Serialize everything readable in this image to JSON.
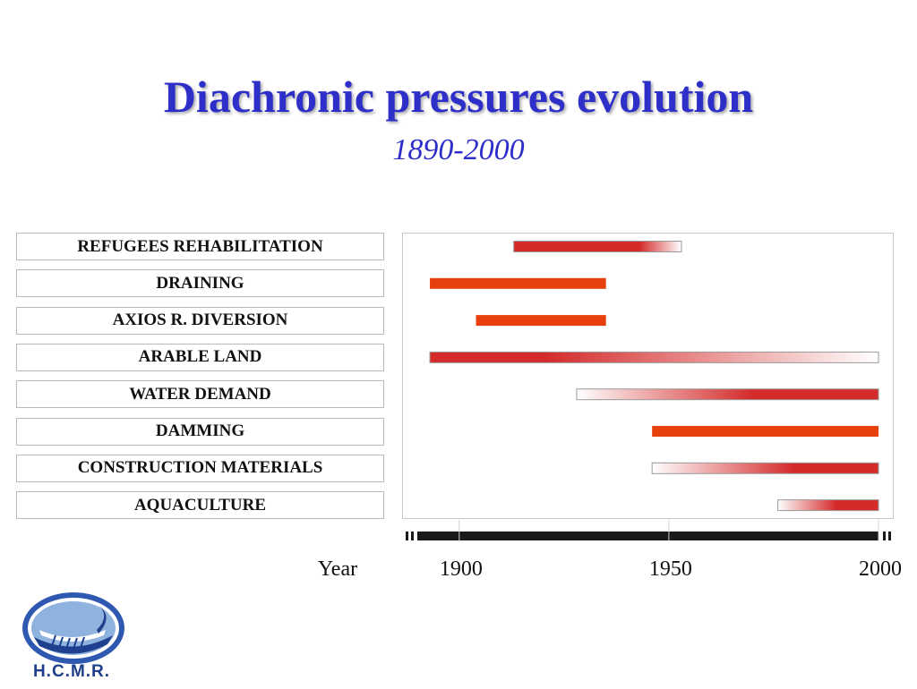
{
  "chart_data": {
    "type": "gantt",
    "title": "Diachronic pressures evolution",
    "subtitle": "1890-2000",
    "xlabel": "Year",
    "xlim": [
      1890,
      2000
    ],
    "x_ticks": [
      1900,
      1950,
      2000
    ],
    "colors": {
      "solid": "#e8400c",
      "gradient_dark": "#d42a2a",
      "axis_bar": "#1a1a1a"
    },
    "series": [
      {
        "name": "REFUGEES REHABILITATION",
        "start": 1913,
        "end": 1953,
        "fill": "fade-out",
        "solid_until": 1943
      },
      {
        "name": "DRAINING",
        "start": 1893,
        "end": 1935,
        "fill": "solid"
      },
      {
        "name": "AXIOS R. DIVERSION",
        "start": 1904,
        "end": 1935,
        "fill": "solid"
      },
      {
        "name": "ARABLE LAND",
        "start": 1893,
        "end": 2000,
        "fill": "fade-out",
        "solid_until": 1920
      },
      {
        "name": "WATER DEMAND",
        "start": 1928,
        "end": 2000,
        "fill": "fade-in",
        "solid_from": 1970
      },
      {
        "name": "DAMMING",
        "start": 1946,
        "end": 2000,
        "fill": "solid"
      },
      {
        "name": "CONSTRUCTION MATERIALS",
        "start": 1946,
        "end": 2000,
        "fill": "fade-in",
        "solid_from": 1980
      },
      {
        "name": "AQUACULTURE",
        "start": 1976,
        "end": 2000,
        "fill": "fade-in",
        "solid_from": 1990
      }
    ]
  },
  "logo": {
    "name": "ship-emblem-icon",
    "text": "H.C.M.R."
  }
}
